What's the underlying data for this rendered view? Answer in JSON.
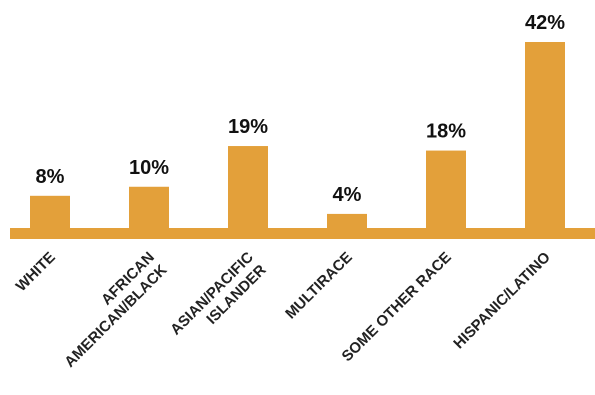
{
  "chart_data": {
    "type": "bar",
    "categories": [
      [
        "WHITE"
      ],
      [
        "AFRICAN",
        "AMERICAN/BLACK"
      ],
      [
        "ASIAN/PACIFIC",
        "ISLANDER"
      ],
      [
        "MULTIRACE"
      ],
      [
        "SOME OTHER RACE"
      ],
      [
        "HISPANIC/LATINO"
      ]
    ],
    "values": [
      8,
      10,
      19,
      4,
      18,
      42
    ],
    "value_labels": [
      "8%",
      "10%",
      "19%",
      "4%",
      "18%",
      "42%"
    ],
    "title": "",
    "xlabel": "",
    "ylabel": "",
    "ylim": [
      0,
      42
    ],
    "grid": false,
    "legend": "none",
    "colors": {
      "bar": "#E3A03A",
      "text": "#111111"
    }
  }
}
